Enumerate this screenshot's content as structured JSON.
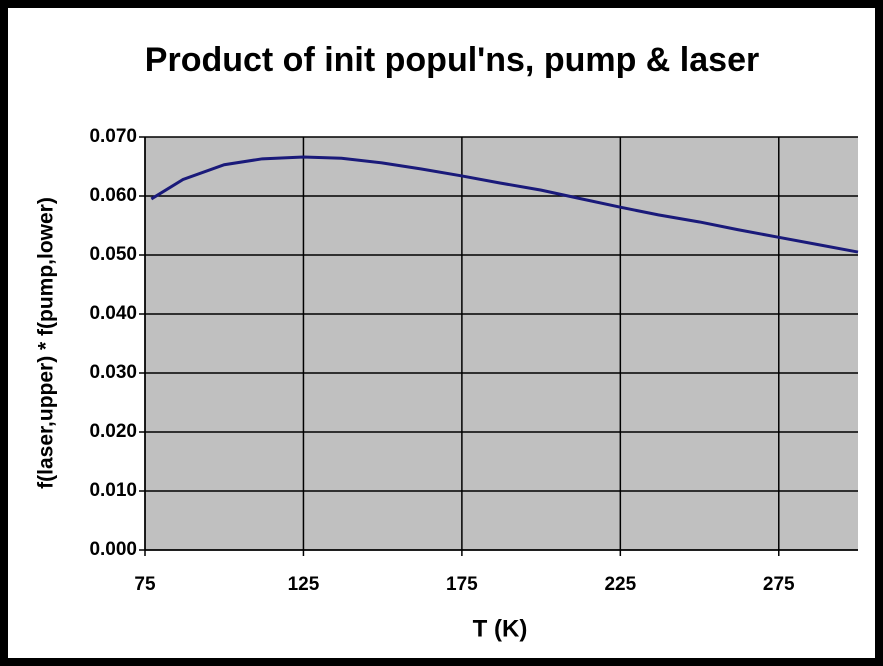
{
  "chart_data": {
    "type": "line",
    "title": "Product of init popul'ns, pump & laser",
    "x_label": "T (K)",
    "y_label": "f(laser,upper) * f(pump,lower)",
    "x": [
      77,
      87,
      100,
      112,
      125,
      137,
      150,
      162,
      175,
      187,
      200,
      212,
      225,
      237,
      250,
      262,
      275,
      287,
      300
    ],
    "values": [
      0.0595,
      0.0628,
      0.0653,
      0.0663,
      0.0666,
      0.0664,
      0.0656,
      0.0646,
      0.0634,
      0.0622,
      0.061,
      0.0596,
      0.0581,
      0.0568,
      0.0556,
      0.0543,
      0.053,
      0.0518,
      0.0505
    ],
    "color": "#1a1a7a",
    "xlim": [
      75,
      300
    ],
    "xticks": [
      75,
      125,
      175,
      225,
      275
    ],
    "ylim": [
      0,
      0.07
    ],
    "yticks": [
      {
        "value": 0,
        "label": "0.000"
      },
      {
        "value": 0.01,
        "label": "0.010"
      },
      {
        "value": 0.02,
        "label": "0.020"
      },
      {
        "value": 0.03,
        "label": "0.030"
      },
      {
        "value": 0.04,
        "label": "0.040"
      },
      {
        "value": 0.05,
        "label": "0.050"
      },
      {
        "value": 0.06,
        "label": "0.060"
      },
      {
        "value": 0.07,
        "label": "0.070"
      }
    ],
    "grid": true,
    "plot_background": "#c0c0c0"
  }
}
